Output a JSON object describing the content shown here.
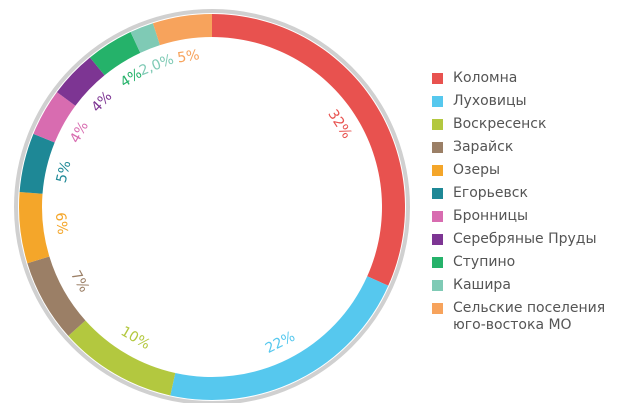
{
  "chart_data": {
    "type": "donut",
    "categories": [
      "Коломна",
      "Луховицы",
      "Воскресенск",
      "Зарайск",
      "Озеры",
      "Егорьевск",
      "Бронницы",
      "Серебряные Пруды",
      "Ступино",
      "Кашира",
      "Сельские поселения юго-востока МО"
    ],
    "values": [
      32,
      22,
      10,
      7,
      6,
      5,
      4,
      4,
      4,
      2.0,
      5
    ],
    "value_labels": [
      "32%",
      "22%",
      "10%",
      "7%",
      "6%",
      "5%",
      "4%",
      "4%",
      "4%",
      "2,0%",
      "5%"
    ],
    "colors": [
      "#e8524f",
      "#56c8ee",
      "#b3c83f",
      "#9b7f66",
      "#f4a62a",
      "#1e8896",
      "#d86cb0",
      "#7d3593",
      "#25b26a",
      "#7fcab5",
      "#f7a35c"
    ],
    "legend": "right"
  }
}
